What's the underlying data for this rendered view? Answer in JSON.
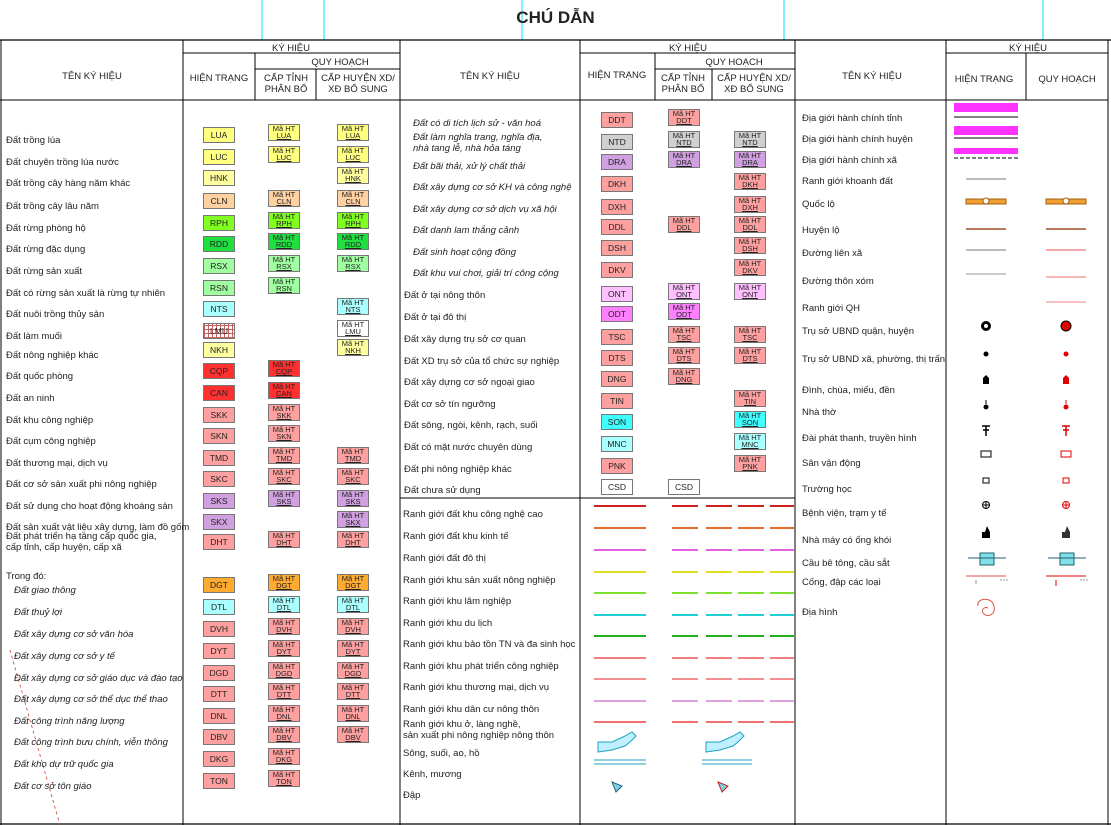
{
  "title": "CHÚ DẪN",
  "headers": {
    "ten_ky_hieu": "TÊN KÝ HIỆU",
    "ky_hieu": "KÝ HIỆU",
    "hien_trang": "HIỆN TRẠNG",
    "quy_hoach": "QUY HOẠCH",
    "cap_tinh": "CẤP TỈNH\nPHÂN BỔ",
    "cap_huyen": "CẤP HUYỆN XD/\nXĐ BỔ SUNG",
    "hien_trang_3": "HIỆN TRẠNG",
    "quy_hoach_3": "QUY HOẠCH"
  },
  "plan_prefix": "Mã HT",
  "colors": {
    "line": "#000000",
    "cyan_guide": "#00e5ff",
    "magenta": "#ff33ff",
    "red": "#e00000"
  },
  "col1": [
    {
      "name": "Đất trồng lúa",
      "code": "LUA",
      "color": "#ffff80",
      "t": 1,
      "h": 1
    },
    {
      "name": "Đất chuyên trồng lúa nước",
      "code": "LUC",
      "color": "#ffff80",
      "t": 1,
      "h": 1
    },
    {
      "name": "Đất trồng cây hàng năm khác",
      "code": "HNK",
      "color": "#ffffa0",
      "t": 0,
      "h": 1
    },
    {
      "name": "Đất trồng cây lâu năm",
      "code": "CLN",
      "color": "#ffd0a0",
      "t": 1,
      "h": 1
    },
    {
      "name": "Đất rừng phòng hộ",
      "code": "RPH",
      "color": "#80ff20",
      "t": 1,
      "h": 1
    },
    {
      "name": "Đất rừng đặc dụng",
      "code": "RDD",
      "color": "#20e040",
      "t": 1,
      "h": 1
    },
    {
      "name": "Đất rừng sản xuất",
      "code": "RSX",
      "color": "#a0ffa0",
      "t": 1,
      "h": 1
    },
    {
      "name": "Đất có rừng sản xuất là rừng tự nhiên",
      "code": "RSN",
      "color": "#a0ffa0",
      "t": 1,
      "h": 0
    },
    {
      "name": "Đất nuôi trồng thủy sản",
      "code": "NTS",
      "color": "#aaffff",
      "t": 0,
      "h": 1
    },
    {
      "name": "Đất làm muối",
      "code": "LMU",
      "color": "#ffffff",
      "t": 0,
      "h": 1
    },
    {
      "name": "Đất nông nghiệp khác",
      "code": "NKH",
      "color": "#ffffa0",
      "t": 0,
      "h": 1
    },
    {
      "name": "Đất quốc phòng",
      "code": "CQP",
      "color": "#ff3030",
      "t": 1,
      "h": 0
    },
    {
      "name": "Đất an ninh",
      "code": "CAN",
      "color": "#ff3030",
      "t": 1,
      "h": 0
    },
    {
      "name": "Đất khu công nghiệp",
      "code": "SKK",
      "color": "#ffa0a0",
      "t": 1,
      "h": 0
    },
    {
      "name": "Đất cụm công nghiệp",
      "code": "SKN",
      "color": "#ffa0a0",
      "t": 1,
      "h": 0
    },
    {
      "name": "Đất thương mại, dịch vụ",
      "code": "TMD",
      "color": "#ffa0a0",
      "t": 1,
      "h": 1
    },
    {
      "name": "Đất cơ sở sản xuất phi nông nghiệp",
      "code": "SKC",
      "color": "#ffa0a0",
      "t": 1,
      "h": 1
    },
    {
      "name": "Đất sử dụng cho hoạt động khoáng sản",
      "code": "SKS",
      "color": "#d0a0e0",
      "t": 1,
      "h": 1
    },
    {
      "name": "Đất sản xuất vật liệu xây dựng, làm đồ gốm",
      "code": "SKX",
      "color": "#d0a0e0",
      "t": 0,
      "h": 1
    },
    {
      "name": "Đất phát triển hạ tầng cấp quốc gia,\ncấp tỉnh, cấp huyện, cấp xã",
      "code": "DHT",
      "color": "#ffa0a0",
      "t": 1,
      "h": 1
    },
    {
      "name": "Trong đó:",
      "code": "",
      "color": "",
      "t": 0,
      "h": 0
    },
    {
      "name": "Đất giao thông",
      "code": "DGT",
      "color": "#ffaa30",
      "t": 1,
      "h": 1
    },
    {
      "name": "Đất thuỷ lợi",
      "code": "DTL",
      "color": "#aaffff",
      "t": 1,
      "h": 1
    },
    {
      "name": "Đất xây dựng cơ sở văn hóa",
      "code": "DVH",
      "color": "#ffa0a0",
      "t": 1,
      "h": 1
    },
    {
      "name": "Đất xây dựng cơ sở y tế",
      "code": "DYT",
      "color": "#ffa0a0",
      "t": 1,
      "h": 1
    },
    {
      "name": "Đất xây dựng cơ sở giáo dục và đào tạo",
      "code": "DGD",
      "color": "#ffa0a0",
      "t": 1,
      "h": 1
    },
    {
      "name": "Đất xây dựng cơ sở thể dục thể thao",
      "code": "DTT",
      "color": "#ffa0a0",
      "t": 1,
      "h": 1
    },
    {
      "name": "Đất công trình năng lượng",
      "code": "DNL",
      "color": "#ffa0a0",
      "t": 1,
      "h": 1
    },
    {
      "name": "Đất công trình bưu chính, viễn thông",
      "code": "DBV",
      "color": "#ffa0a0",
      "t": 1,
      "h": 1
    },
    {
      "name": "Đất kho dự trữ quốc gia",
      "code": "DKG",
      "color": "#ffa0a0",
      "t": 1,
      "h": 0
    },
    {
      "name": "Đất cơ sở tôn giáo",
      "code": "TON",
      "color": "#ffa0a0",
      "t": 1,
      "h": 0
    }
  ],
  "col2": [
    {
      "name": "Đất có di tích lịch sử - văn hoá",
      "code": "DDT",
      "color": "#ffa0a0",
      "t": 1,
      "h": 0
    },
    {
      "name": "Đất làm nghĩa trang, nghĩa địa,\nnhà tang lễ, nhà hỏa táng",
      "code": "NTD",
      "color": "#d0d0d0",
      "t": 1,
      "h": 1
    },
    {
      "name": "Đất bãi thải, xử lý chất thải",
      "code": "DRA",
      "color": "#d0a0e0",
      "t": 1,
      "h": 1
    },
    {
      "name": "Đất xây dựng cơ sở KH và công nghệ",
      "code": "DKH",
      "color": "#ffa0a0",
      "t": 0,
      "h": 1
    },
    {
      "name": "Đất xây dựng cơ sở dịch vụ xã hội",
      "code": "DXH",
      "color": "#ffa0a0",
      "t": 0,
      "h": 1
    },
    {
      "name": "Đất danh lam thắng cảnh",
      "code": "DDL",
      "color": "#ffa0a0",
      "t": 1,
      "h": 1
    },
    {
      "name": "Đất sinh hoạt cộng đồng",
      "code": "DSH",
      "color": "#ffa0a0",
      "t": 0,
      "h": 1
    },
    {
      "name": "Đất khu vui chơi, giải trí công cộng",
      "code": "DKV",
      "color": "#ffa0a0",
      "t": 0,
      "h": 1
    },
    {
      "name": "Đất ở tại nông thôn",
      "code": "ONT",
      "color": "#ffc0ff",
      "t": 1,
      "h": 1
    },
    {
      "name": "Đất ở tại đô thị",
      "code": "ODT",
      "color": "#ff80ff",
      "t": 1,
      "h": 0
    },
    {
      "name": "Đất xây dựng trụ sở cơ quan",
      "code": "TSC",
      "color": "#ffa0a0",
      "t": 1,
      "h": 1
    },
    {
      "name": "Đất XD trụ sở của tổ chức sự nghiệp",
      "code": "DTS",
      "color": "#ffa0a0",
      "t": 1,
      "h": 1
    },
    {
      "name": "Đất xây dựng cơ sở ngoại giao",
      "code": "DNG",
      "color": "#ffa0a0",
      "t": 1,
      "h": 0
    },
    {
      "name": "Đất cơ sở tín ngưỡng",
      "code": "TIN",
      "color": "#ffa0a0",
      "t": 0,
      "h": 1
    },
    {
      "name": "Đất sông, ngòi, kênh, rạch, suối",
      "code": "SON",
      "color": "#40ffff",
      "t": 0,
      "h": 1
    },
    {
      "name": "Đất có mặt nước chuyên dùng",
      "code": "MNC",
      "color": "#aaffff",
      "t": 0,
      "h": 1
    },
    {
      "name": "Đất phi nông nghiệp khác",
      "code": "PNK",
      "color": "#ffa0a0",
      "t": 0,
      "h": 1
    },
    {
      "name": "Đất chưa sử dụng",
      "code": "CSD",
      "color": "#ffffff",
      "t": 2,
      "h": 0
    }
  ],
  "col2_lines": [
    {
      "name": "Ranh giới đất khu công nghệ cao",
      "color": "#d02020"
    },
    {
      "name": "Ranh giới đất khu kinh tế",
      "color": "#e07030"
    },
    {
      "name": "Ranh giới đất đô thị",
      "color": "#e060e0"
    },
    {
      "name": "Ranh giới khu sản xuất nông nghiệp",
      "color": "#e0e020"
    },
    {
      "name": "Ranh giới khu lâm nghiệp",
      "color": "#80e030"
    },
    {
      "name": "Ranh giới khu du lịch",
      "color": "#20d0d0"
    },
    {
      "name": "Ranh giới khu bảo tồn TN và đa sinh học",
      "color": "#20b020"
    },
    {
      "name": "Ranh giới khu phát triển công nghiệp",
      "color": "#f08080"
    },
    {
      "name": "Ranh giới khu thương mại, dịch vụ",
      "color": "#f09090"
    },
    {
      "name": "Ranh giới khu dân cư nông thôn",
      "color": "#e0a0e0"
    },
    {
      "name": "Ranh giới khu ở, làng nghề,\nsản xuất phi nông nghiệp nông thôn",
      "color": "#f07070"
    },
    {
      "name": "Sông, suối, ao, hồ",
      "color": "#40c0d0"
    },
    {
      "name": "Kênh, mương",
      "color": "#40c0d0"
    },
    {
      "name": "Đập",
      "color": "#40c0d0"
    }
  ],
  "col3": [
    {
      "name": "Địa giới hành chính tỉnh",
      "icon": "province-boundary"
    },
    {
      "name": "Địa giới hành chính huyện",
      "icon": "district-boundary"
    },
    {
      "name": "Địa giới hành chính xã",
      "icon": "commune-boundary"
    },
    {
      "name": "Ranh giới khoanh đất",
      "icon": "parcel-boundary"
    },
    {
      "name": "Quốc lộ",
      "icon": "national-road"
    },
    {
      "name": "Huyện lộ",
      "icon": "district-road"
    },
    {
      "name": "Đường liên xã",
      "icon": "intercommune-road"
    },
    {
      "name": "Đường thôn xóm",
      "icon": "village-road"
    },
    {
      "name": "Ranh giới QH",
      "icon": "plan-boundary"
    },
    {
      "name": "Trụ sở UBND quận, huyện",
      "icon": "district-office"
    },
    {
      "name": "Trụ sở UBND xã, phường, thị trấn",
      "icon": "commune-office"
    },
    {
      "name": "Đình, chùa, miếu, đền",
      "icon": "temple"
    },
    {
      "name": "Nhà thờ",
      "icon": "church"
    },
    {
      "name": "Đài phát thanh, truyền hình",
      "icon": "radio-station"
    },
    {
      "name": "Sân vận động",
      "icon": "stadium"
    },
    {
      "name": "Trường học",
      "icon": "school"
    },
    {
      "name": "Bệnh viện, trạm y tế",
      "icon": "hospital"
    },
    {
      "name": "Nhà máy có ống khói",
      "icon": "factory"
    },
    {
      "name": "Cầu bê tông, cầu sắt",
      "icon": "bridge"
    },
    {
      "name": "Cống, đập các loại",
      "icon": "culvert"
    },
    {
      "name": "Địa hình",
      "icon": "terrain"
    }
  ]
}
